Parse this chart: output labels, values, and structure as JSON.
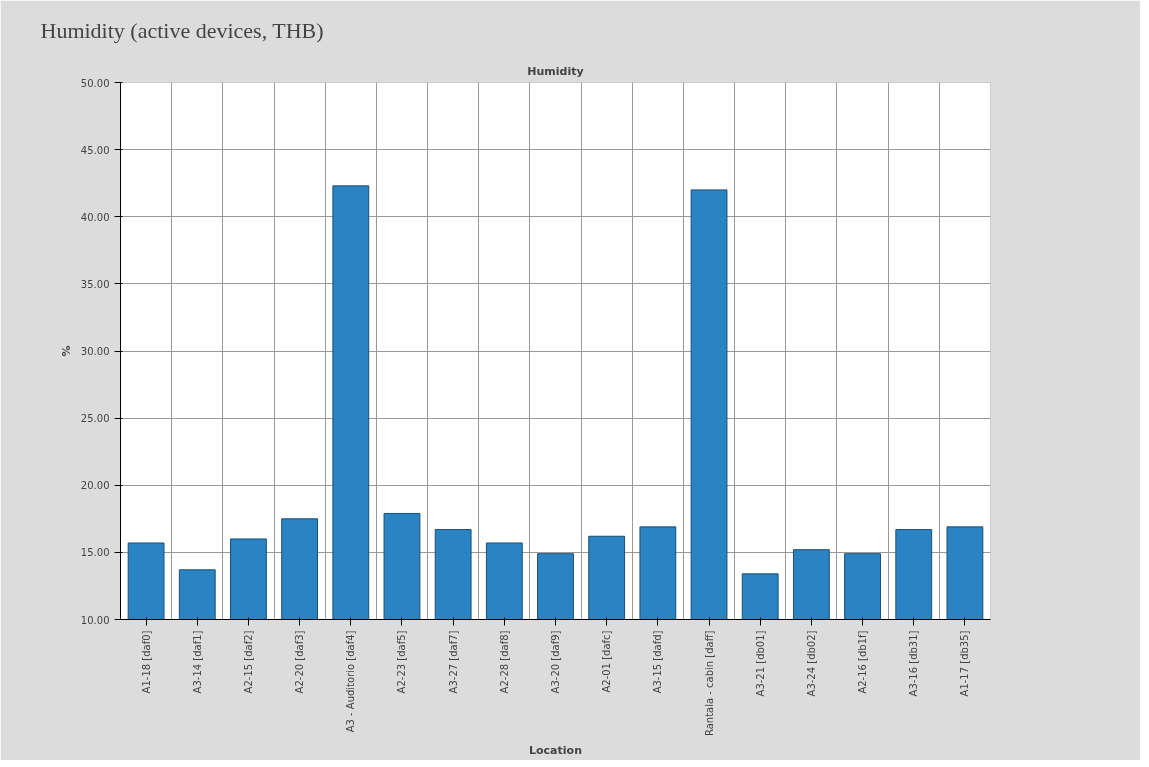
{
  "chart_data": {
    "type": "bar",
    "title": "Humidity (active devices, THB)",
    "subtitle": "Humidity",
    "xlabel": "Location",
    "ylabel": "%",
    "categories": [
      "A1-18 [daf0]",
      "A3-14 [daf1]",
      "A2-15 [daf2]",
      "A2-20 [daf3]",
      "A3 - Auditorio [daf4]",
      "A2-23 [daf5]",
      "A3-27 [daf7]",
      "A2-28 [daf8]",
      "A3-20 [daf9]",
      "A2-01 [dafc]",
      "A3-15 [dafd]",
      "Rantala - cabin [daff]",
      "A3-21 [db01]",
      "A3-24 [db02]",
      "A2-16 [db1f]",
      "A3-16 [db31]",
      "A1-17 [db35]"
    ],
    "values": [
      15.7,
      13.7,
      16.0,
      17.5,
      42.3,
      17.9,
      16.7,
      15.7,
      14.9,
      16.2,
      16.9,
      42.0,
      13.4,
      15.2,
      14.9,
      16.7,
      16.9
    ],
    "color": "#2a84c4",
    "ylim": [
      10,
      50
    ],
    "yticks": [
      {
        "value": 10,
        "label": "10.00"
      },
      {
        "value": 15,
        "label": "15.00"
      },
      {
        "value": 20,
        "label": "20.00"
      },
      {
        "value": 25,
        "label": "25.00"
      },
      {
        "value": 30,
        "label": "30.00"
      },
      {
        "value": 35,
        "label": "35.00"
      },
      {
        "value": 40,
        "label": "40.00"
      },
      {
        "value": 45,
        "label": "45.00"
      },
      {
        "value": 50,
        "label": "50.00"
      }
    ],
    "grid": true
  }
}
